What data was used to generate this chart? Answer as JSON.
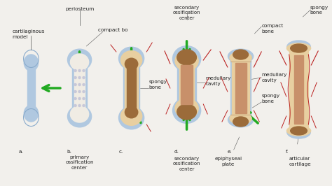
{
  "background_color": "#f2f0ec",
  "labels": {
    "a_letter": "a.",
    "b_letter": "b.",
    "c_letter": "c.",
    "d_letter": "d.",
    "e_letter": "e.",
    "f_letter": "f.",
    "cartilaginous_model": "cartilaginous\nmodel",
    "periosteum": "periosteum",
    "compact_bone_b": "compact bo",
    "primary_ossification": "primary\nossification\ncenter",
    "spongy_bone_c": "spongy\nbone",
    "secondary_ossification_top": "secondary\nossification\ncenter",
    "medullary_cavity_d": "medullary\ncavity",
    "secondary_ossification_bottom": "secondary\nossification\ncenter",
    "compact_bone_e": "compact\nbone",
    "medullary_cavity_e": "medullary\ncavity",
    "spongy_bone_e": "spongy\nbone",
    "epiphyseal_plate": "epiphyseal\nplate",
    "spongy_bone_f": "spongy\nbone",
    "articular_cartilage": "articular\ncartilage"
  },
  "colors": {
    "cartilage_blue": "#b0c8e0",
    "cartilage_blue_dark": "#8aabcc",
    "compact_tan": "#d4aa78",
    "compact_light": "#e8cfa0",
    "spongy_brown": "#9b6b3a",
    "medullary_tan": "#c8906a",
    "arrow_green": "#22aa22",
    "text_color": "#222222",
    "background": "#f2f0ec",
    "red_vessel": "#bb2222",
    "white_inner": "#f0ece4",
    "dot_gray": "#c8c8d8",
    "line_color": "#555555"
  }
}
